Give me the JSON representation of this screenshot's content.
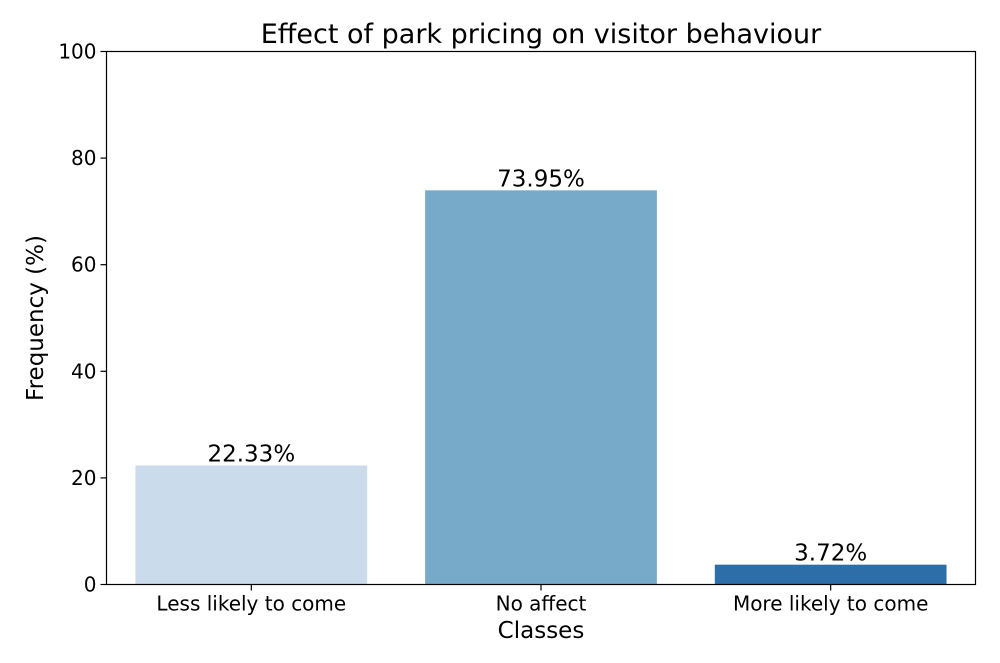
{
  "chart_data": {
    "type": "bar",
    "title": "Effect of park pricing on visitor behaviour",
    "xlabel": "Classes",
    "ylabel": "Frequency (%)",
    "categories": [
      "Less likely to come",
      "No affect",
      "More likely to come"
    ],
    "values": [
      22.33,
      73.95,
      3.72
    ],
    "data_labels": [
      "22.33%",
      "73.95%",
      "3.72%"
    ],
    "colors": [
      "#cadbeb",
      "#77a9c9",
      "#2d6ea9"
    ],
    "ylim": [
      0,
      100
    ],
    "yticks": [
      0,
      20,
      40,
      60,
      80,
      100
    ],
    "ytick_labels": [
      "0",
      "20",
      "40",
      "60",
      "80",
      "100"
    ],
    "grid": false,
    "legend": "none"
  }
}
